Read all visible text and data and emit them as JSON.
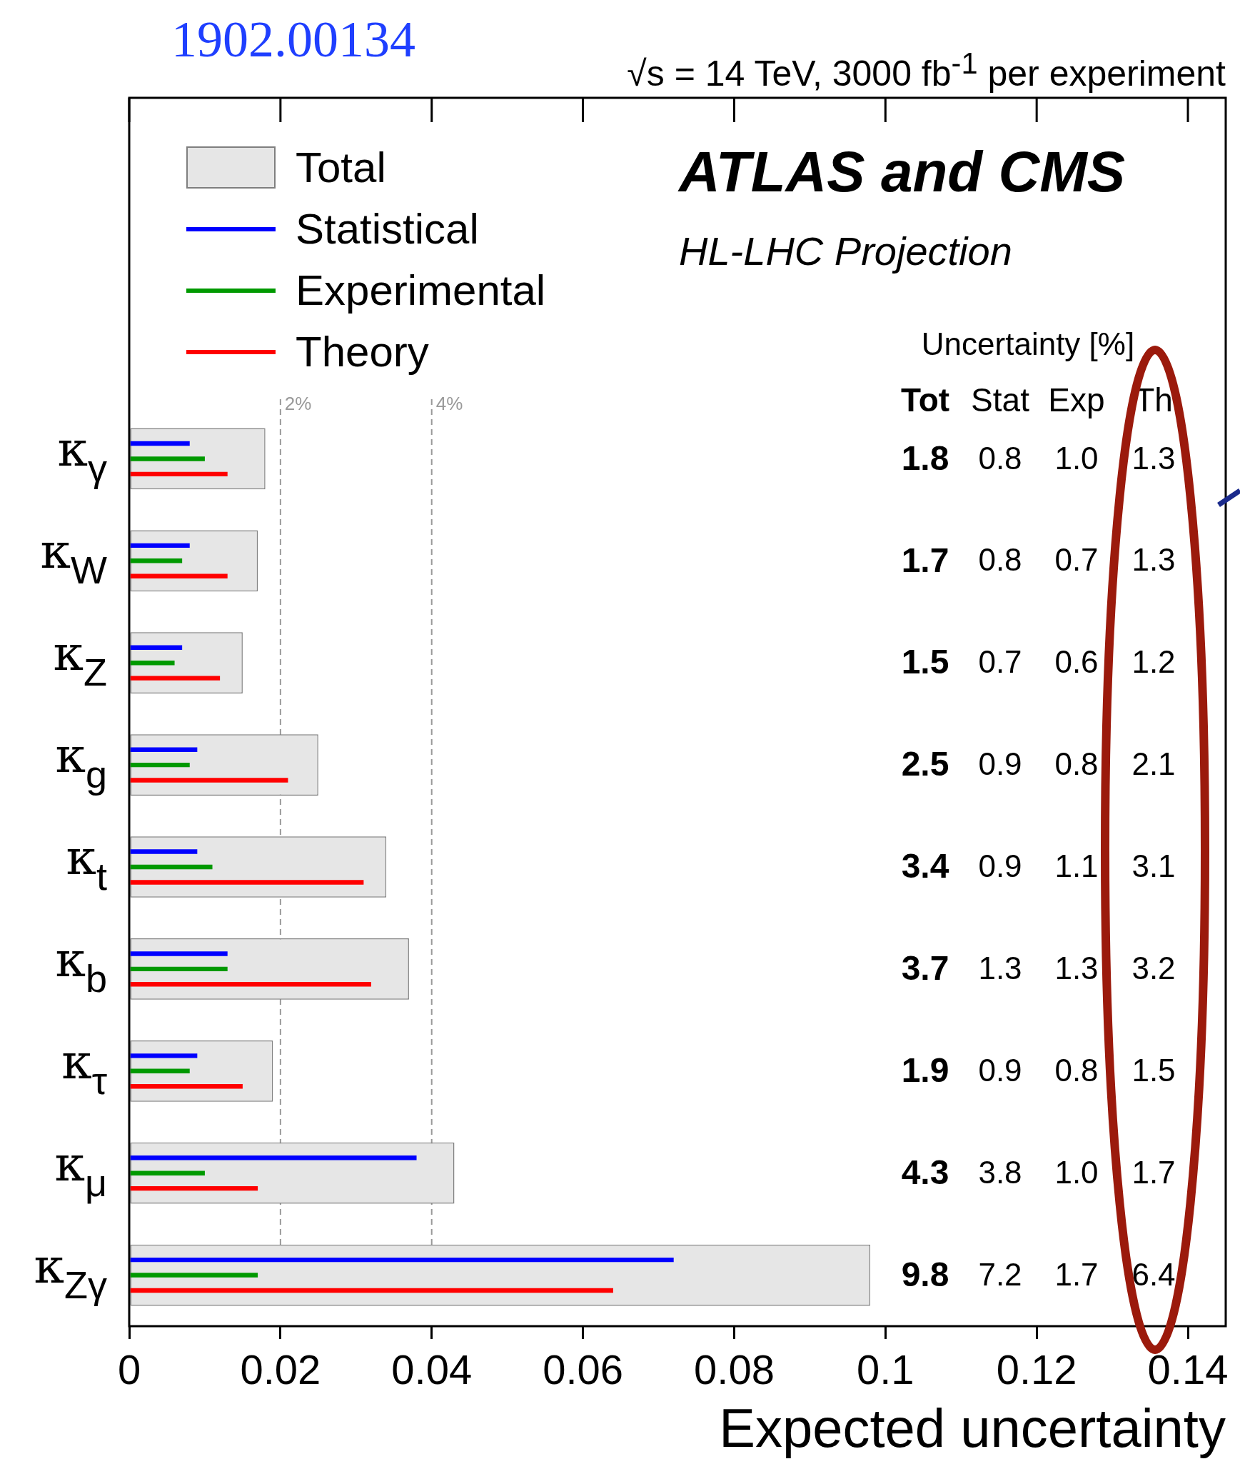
{
  "chart_data": {
    "type": "bar",
    "orientation": "horizontal",
    "title": "√s = 14 TeV, 3000 fb$^{-1}$ per experiment",
    "xlabel": "Expected uncertainty",
    "categories": [
      "κ$_{γ}$",
      "κ$_{W}$",
      "κ$_{Z}$",
      "κ$_{g}$",
      "κ$_{t}$",
      "κ$_{b}$",
      "κ$_{τ}$",
      "κ$_{μ}$",
      "κ$_{Zγ}$"
    ],
    "series": [
      {
        "name": "Total",
        "color": "#e6e6e6",
        "values": [
          0.018,
          0.017,
          0.015,
          0.025,
          0.034,
          0.037,
          0.019,
          0.043,
          0.098
        ]
      },
      {
        "name": "Statistical",
        "color": "#0000ff",
        "values": [
          0.008,
          0.008,
          0.007,
          0.009,
          0.009,
          0.013,
          0.009,
          0.038,
          0.072
        ]
      },
      {
        "name": "Experimental",
        "color": "#009900",
        "values": [
          0.01,
          0.007,
          0.006,
          0.008,
          0.011,
          0.013,
          0.008,
          0.01,
          0.017
        ]
      },
      {
        "name": "Theory",
        "color": "#ff0000",
        "values": [
          0.013,
          0.013,
          0.012,
          0.021,
          0.031,
          0.032,
          0.015,
          0.017,
          0.064
        ]
      }
    ],
    "xlim": [
      0,
      0.145
    ],
    "xticks": [
      0,
      0.02,
      0.04,
      0.06,
      0.08,
      0.1,
      0.12,
      0.14
    ],
    "ref_lines": [
      {
        "axis": "x",
        "value": 0.02,
        "label": "2%",
        "color": "#999999",
        "line_style": "dashed"
      },
      {
        "axis": "x",
        "value": 0.04,
        "label": "4%",
        "color": "#999999",
        "line_style": "dashed"
      }
    ],
    "annotations": [
      "1902.00134",
      "ATLAS and CMS",
      "HL-LHC Projection",
      "Uncertainty [%]",
      "Tot",
      "Stat",
      "Exp",
      "Th",
      "1.8",
      "0.8",
      "1.0",
      "1.3",
      "1.7",
      "0.8",
      "0.7",
      "1.3",
      "1.5",
      "0.7",
      "0.6",
      "1.2",
      "2.5",
      "0.9",
      "0.8",
      "2.1",
      "3.4",
      "0.9",
      "1.1",
      "3.1",
      "3.7",
      "1.3",
      "1.3",
      "3.2",
      "1.9",
      "0.9",
      "0.8",
      "1.5",
      "4.3",
      "3.8",
      "1.0",
      "1.7",
      "9.8",
      "7.2",
      "1.7",
      "6.4"
    ],
    "grid": false,
    "legend": "top left"
  }
}
